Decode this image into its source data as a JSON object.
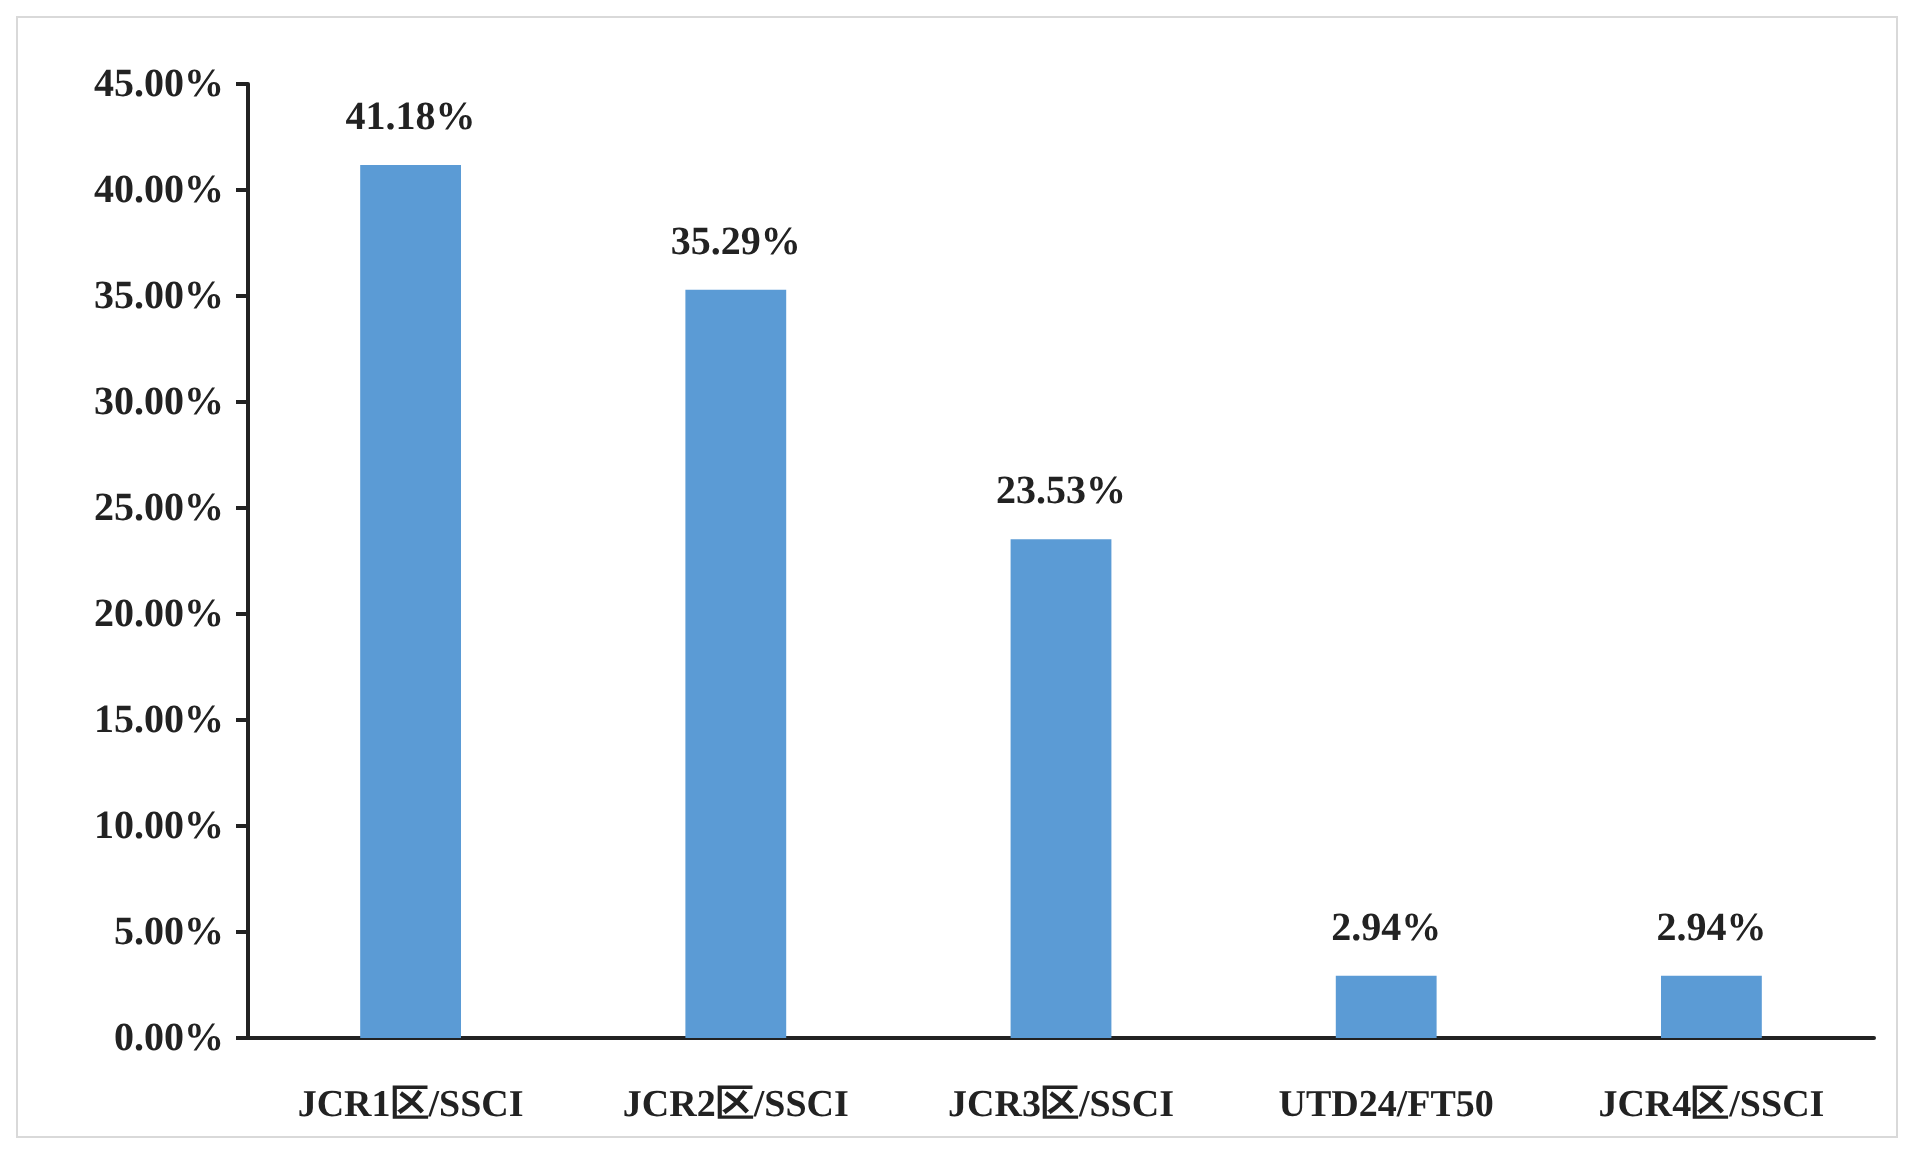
{
  "chart_data": {
    "type": "bar",
    "categories": [
      "JCR1区/SSCI",
      "JCR2区/SSCI",
      "JCR3区/SSCI",
      "UTD24/FT50",
      "JCR4区/SSCI"
    ],
    "values": [
      41.18,
      35.29,
      23.53,
      2.94,
      2.94
    ],
    "color": "#5b9bd5",
    "value_labels": [
      "41.18%",
      "35.29%",
      "23.53%",
      "2.94%",
      "2.94%"
    ],
    "ylim": [
      0,
      45
    ],
    "yticks": [
      {
        "value": 0,
        "label": "0.00%"
      },
      {
        "value": 5,
        "label": "5.00%"
      },
      {
        "value": 10,
        "label": "10.00%"
      },
      {
        "value": 15,
        "label": "15.00%"
      },
      {
        "value": 20,
        "label": "20.00%"
      },
      {
        "value": 25,
        "label": "25.00%"
      },
      {
        "value": 30,
        "label": "30.00%"
      },
      {
        "value": 35,
        "label": "35.00%"
      },
      {
        "value": 40,
        "label": "40.00%"
      },
      {
        "value": 45,
        "label": "45.00%"
      }
    ],
    "grid": false
  }
}
